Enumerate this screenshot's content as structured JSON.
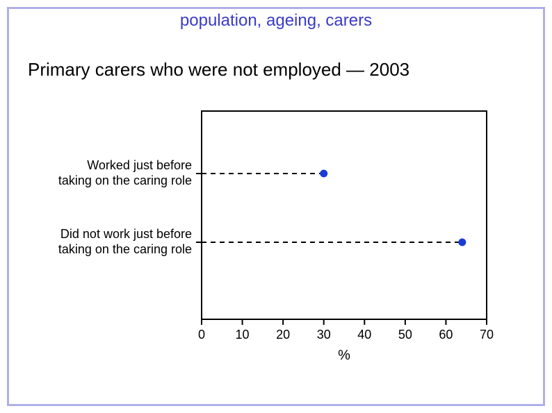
{
  "header": {
    "text": "population, ageing, carers",
    "color": "#3a3ac8",
    "fontsize": 24
  },
  "title": {
    "text": "Primary carers who were not employed — 2003",
    "color": "#000000",
    "fontsize": 26
  },
  "frame": {
    "border_color": "#b0b0e8",
    "border_width": 3
  },
  "chart": {
    "type": "dot-lollipop",
    "background_color": "#ffffff",
    "plot_border_color": "#000000",
    "plot_border_width": 2,
    "categories": [
      {
        "label_line1": "Worked just before",
        "label_line2": "taking on the caring role",
        "value": 30
      },
      {
        "label_line1": "Did not work just before",
        "label_line2": "taking on the caring role",
        "value": 64
      }
    ],
    "x_axis": {
      "min": 0,
      "max": 70,
      "tick_step": 10,
      "ticks": [
        0,
        10,
        20,
        30,
        40,
        50,
        60,
        70
      ],
      "title": "%",
      "label_fontsize": 18,
      "title_fontsize": 20
    },
    "marker": {
      "color": "#1a3cd6",
      "radius": 5
    },
    "leader_line": {
      "color": "#000000",
      "width": 2,
      "dash": "7,6"
    },
    "tick_length": 8,
    "label_fontsize": 18,
    "label_color": "#000000"
  }
}
